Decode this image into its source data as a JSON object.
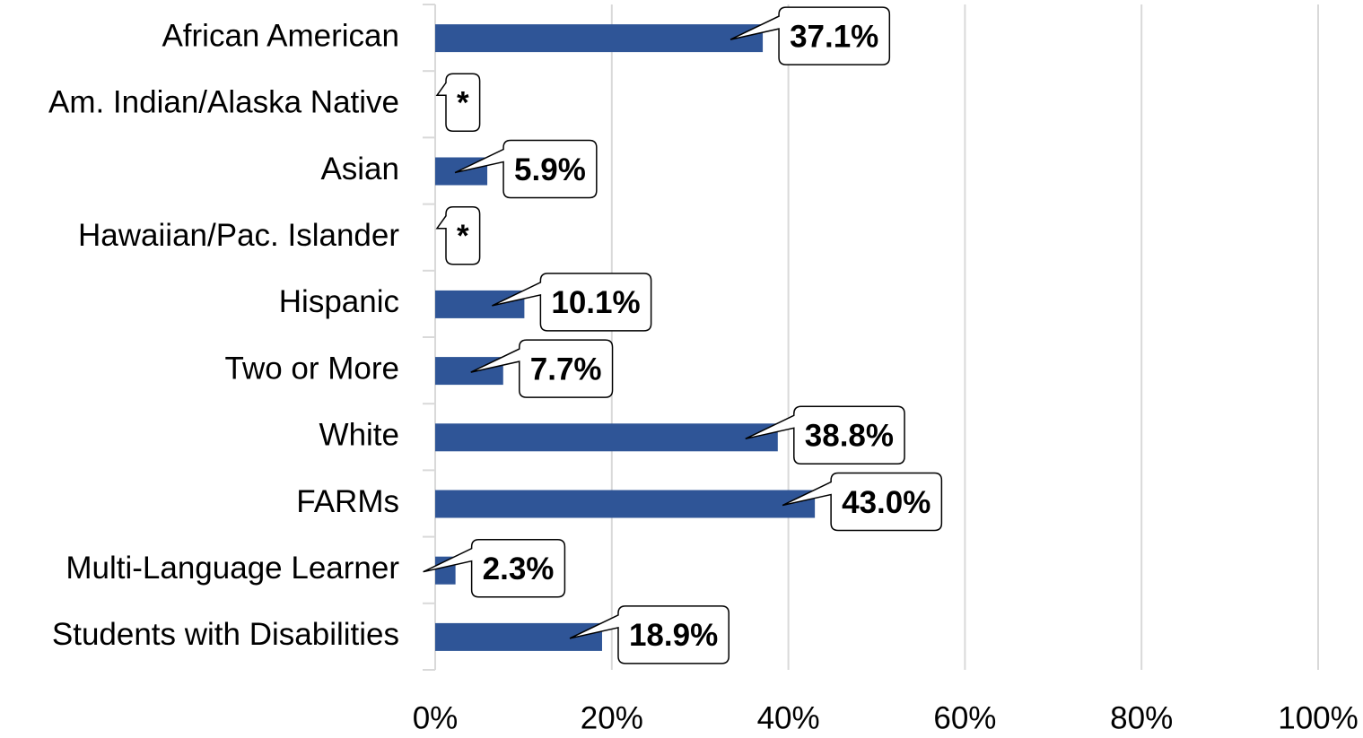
{
  "chart_data": {
    "type": "bar",
    "orientation": "horizontal",
    "categories": [
      "African American",
      "Am. Indian/Alaska Native",
      "Asian",
      "Hawaiian/Pac. Islander",
      "Hispanic",
      "Two or More",
      "White",
      "FARMs",
      "Multi-Language Learner",
      "Students with Disabilities"
    ],
    "values": [
      37.1,
      null,
      5.9,
      null,
      10.1,
      7.7,
      38.8,
      43.0,
      2.3,
      18.9
    ],
    "value_labels": [
      "37.1%",
      "*",
      "5.9%",
      "*",
      "10.1%",
      "7.7%",
      "38.8%",
      "43.0%",
      "2.3%",
      "18.9%"
    ],
    "color": "#2f5597",
    "xlim": [
      0,
      100
    ],
    "xticks": [
      {
        "value": 0,
        "label": "0%"
      },
      {
        "value": 20,
        "label": "20%"
      },
      {
        "value": 40,
        "label": "40%"
      },
      {
        "value": 60,
        "label": "60%"
      },
      {
        "value": 80,
        "label": "80%"
      },
      {
        "value": 100,
        "label": "100%"
      }
    ],
    "grid": true
  }
}
